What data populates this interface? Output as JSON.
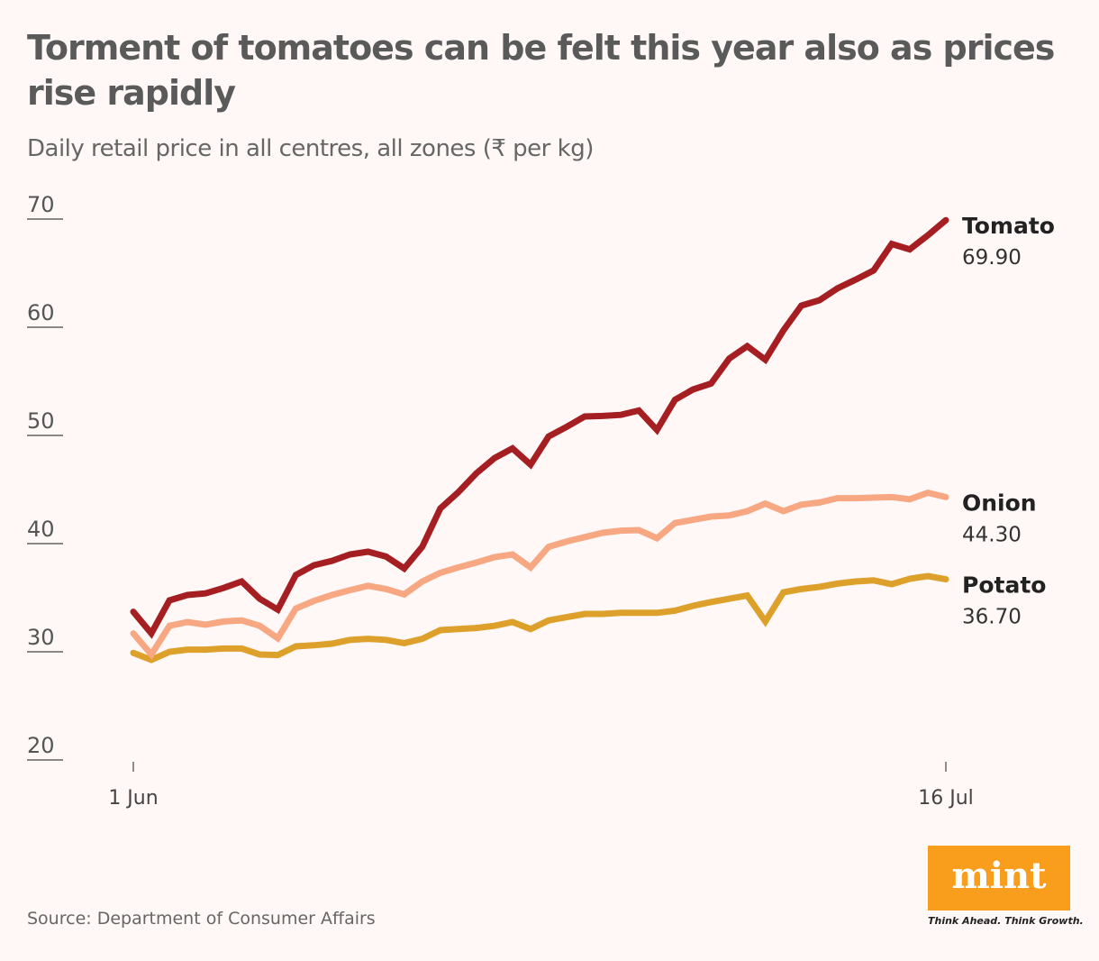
{
  "title": "Torment of tomatoes can be felt this year also as prices rise rapidly",
  "subtitle": "Daily retail price in all centres, all zones (₹ per kg)",
  "source": "Source: Department of Consumer Affairs",
  "logo": {
    "text": "mint",
    "tagline": "Think Ahead. Think Growth.",
    "color": "#f99d1c"
  },
  "chart_data": {
    "type": "line",
    "title": "Torment of tomatoes can be felt this year also as prices rise rapidly",
    "ylabel": "Daily retail price in all centres, all zones (₹ per kg)",
    "ylim": [
      20,
      70
    ],
    "yticks": [
      "20",
      "30",
      "40",
      "50",
      "60",
      "70"
    ],
    "xticks": [
      "1 Jun",
      "16 Jul"
    ],
    "x_range": [
      "1 Jun",
      "16 Jul"
    ],
    "grid": false,
    "series": [
      {
        "name": "Tomato",
        "end_label": "69.90",
        "color": "#a51f22",
        "values": [
          33.7,
          31.7,
          34.75,
          35.25,
          35.4,
          35.9,
          36.5,
          34.9,
          33.9,
          37.1,
          38.0,
          38.4,
          39.0,
          39.25,
          38.8,
          37.7,
          39.7,
          43.25,
          44.75,
          46.5,
          47.9,
          48.8,
          47.3,
          49.9,
          50.8,
          51.75,
          51.8,
          51.9,
          52.3,
          50.5,
          53.3,
          54.25,
          54.8,
          57.1,
          58.25,
          57.0,
          59.7,
          62.0,
          62.5,
          63.6,
          64.4,
          65.25,
          67.7,
          67.2,
          68.5,
          69.9
        ]
      },
      {
        "name": "Onion",
        "end_label": "44.30",
        "color": "#f7a882",
        "values": [
          31.7,
          29.75,
          32.4,
          32.75,
          32.5,
          32.8,
          32.9,
          32.4,
          31.25,
          34.0,
          34.7,
          35.25,
          35.7,
          36.1,
          35.8,
          35.3,
          36.5,
          37.3,
          37.8,
          38.25,
          38.75,
          39.0,
          37.8,
          39.7,
          40.2,
          40.6,
          41.0,
          41.2,
          41.25,
          40.5,
          41.9,
          42.2,
          42.5,
          42.6,
          43.0,
          43.7,
          43.0,
          43.6,
          43.8,
          44.2,
          44.2,
          44.25,
          44.3,
          44.1,
          44.7,
          44.3
        ]
      },
      {
        "name": "Potato",
        "end_label": "36.70",
        "color": "#dda02a",
        "values": [
          29.9,
          29.25,
          30.0,
          30.2,
          30.2,
          30.3,
          30.3,
          29.75,
          29.7,
          30.5,
          30.6,
          30.75,
          31.1,
          31.2,
          31.1,
          30.8,
          31.2,
          32.0,
          32.1,
          32.2,
          32.4,
          32.75,
          32.1,
          32.9,
          33.2,
          33.5,
          33.5,
          33.6,
          33.6,
          33.6,
          33.8,
          34.25,
          34.6,
          34.9,
          35.2,
          32.8,
          35.5,
          35.8,
          36.0,
          36.3,
          36.5,
          36.6,
          36.25,
          36.75,
          37.0,
          36.7
        ]
      }
    ]
  }
}
